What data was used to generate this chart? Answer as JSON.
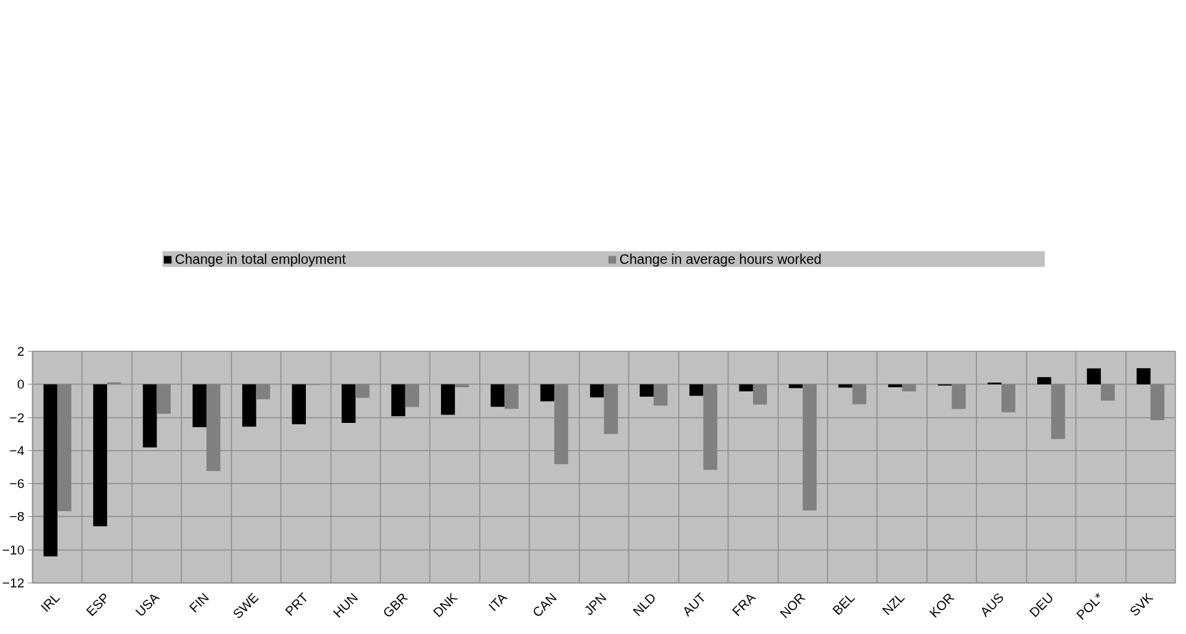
{
  "chart_data": {
    "type": "bar",
    "categories": [
      "IRL",
      "ESP",
      "USA",
      "FIN",
      "SWE",
      "PRT",
      "HUN",
      "GBR",
      "DNK",
      "ITA",
      "CAN",
      "JPN",
      "NLD",
      "AUT",
      "FRA",
      "NOR",
      "BEL",
      "NZL",
      "KOR",
      "AUS",
      "DEU",
      "POL*",
      "SVK"
    ],
    "series": [
      {
        "name": "Change in total employment",
        "color": "#000000",
        "values": [
          -10.4,
          -8.57,
          -3.81,
          -2.59,
          -2.56,
          -2.41,
          -2.33,
          -1.92,
          -1.84,
          -1.36,
          -1.02,
          -0.79,
          -0.74,
          -0.69,
          -0.42,
          -0.23,
          -0.2,
          -0.17,
          -0.07,
          0.1,
          0.44,
          0.96,
          0.98
        ]
      },
      {
        "name": "Change in average hours worked",
        "color": "#808080",
        "values": [
          -7.66,
          0.13,
          -1.78,
          -5.24,
          -0.9,
          -0.03,
          -0.82,
          -1.37,
          -0.17,
          -1.48,
          -4.82,
          -3.0,
          -1.28,
          -5.17,
          -1.22,
          -7.62,
          -1.2,
          -0.42,
          -1.49,
          -1.69,
          -3.3,
          -0.98,
          -2.16
        ]
      }
    ],
    "ylim": [
      -12,
      2
    ],
    "yticks": [
      -12,
      -10,
      -8,
      -6,
      -4,
      -2,
      0,
      2
    ],
    "grid": true,
    "legend": "top"
  }
}
